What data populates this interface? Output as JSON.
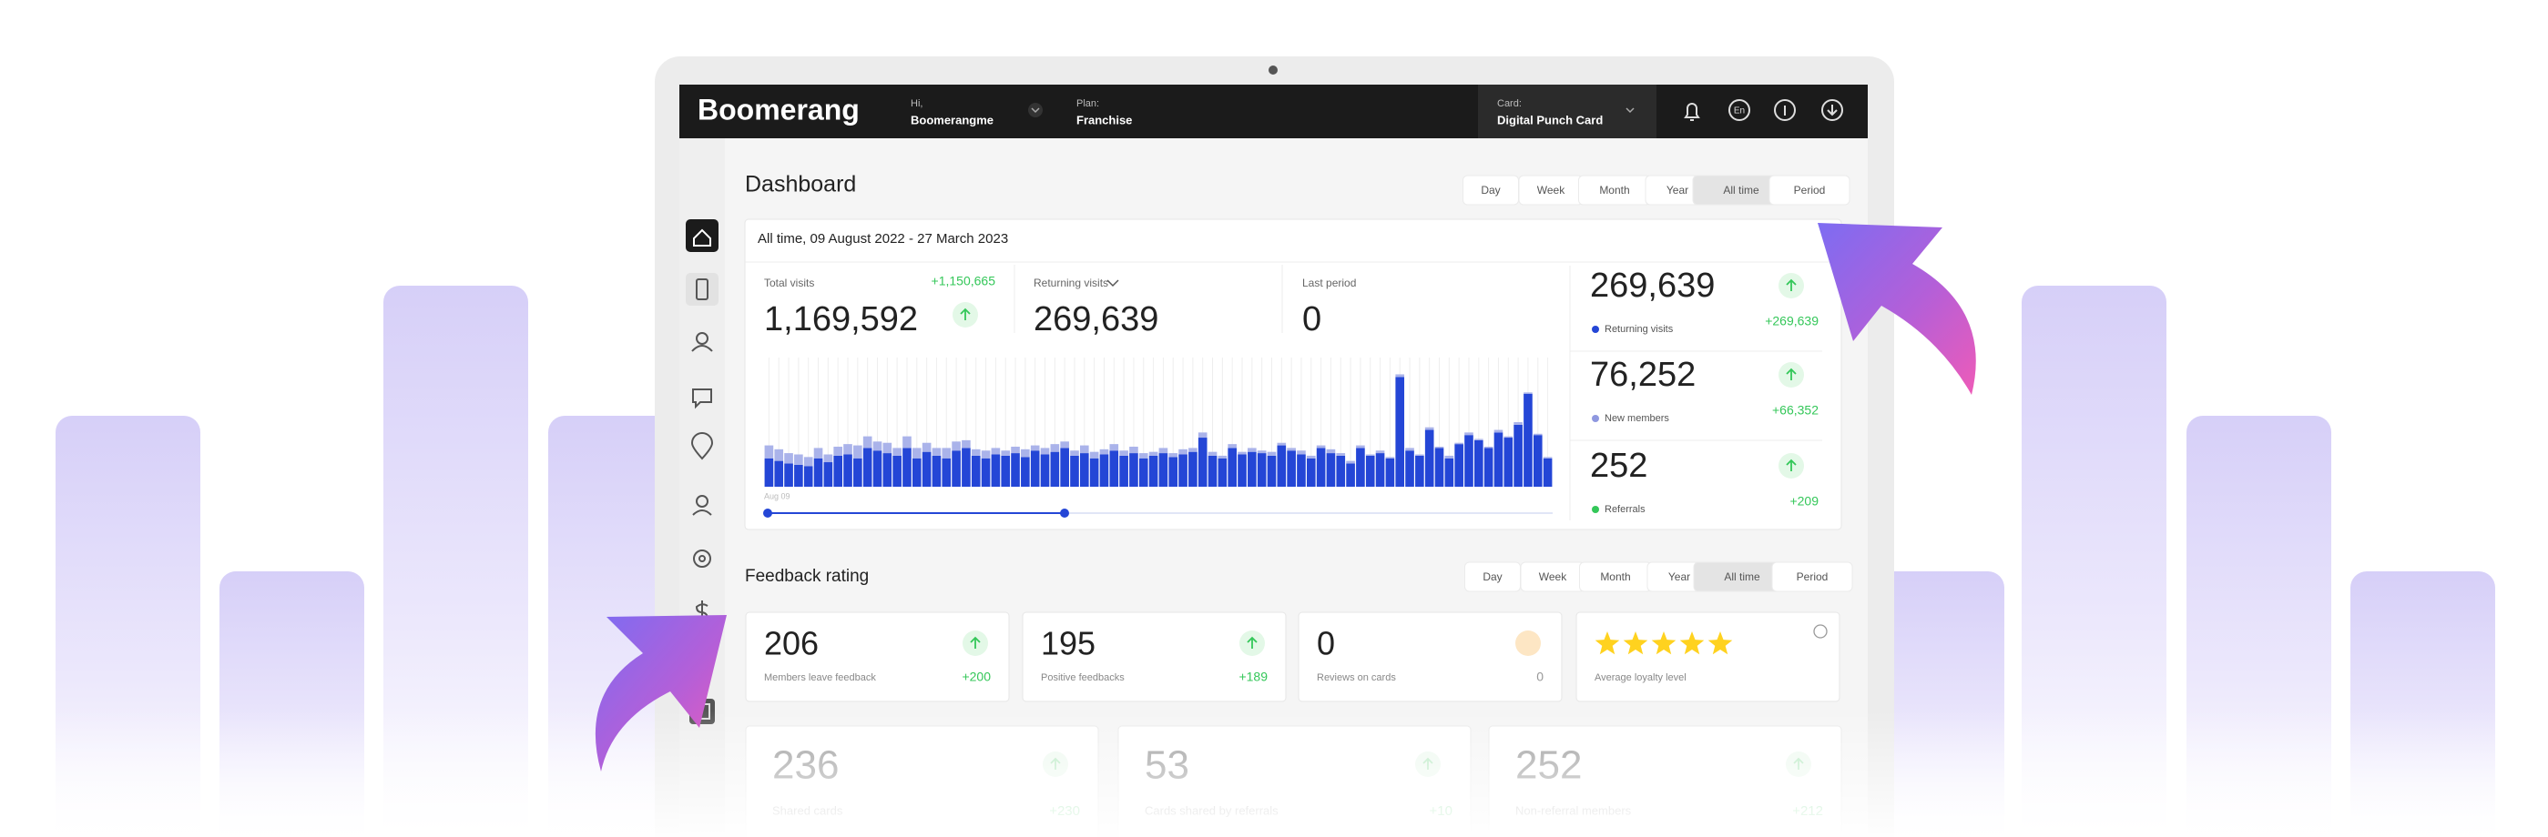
{
  "nav": {
    "logo": "Boomerang",
    "greeting": "Hi,",
    "user": "Boomerangme",
    "plan_label": "Plan:",
    "plan": "Franchise",
    "card_label": "Card:",
    "card": "Digital Punch Card",
    "language": "En"
  },
  "dashboard": {
    "title": "Dashboard",
    "periods": [
      "Day",
      "Week",
      "Month",
      "Year",
      "All time",
      "Period"
    ],
    "active_period": 4,
    "range": "All time, 09 August 2022 - 27 March 2023",
    "stats": [
      {
        "label": "Total visits",
        "value": "1,169,592",
        "delta": "+1,150,665"
      },
      {
        "label": "Returning visits",
        "value": "269,639"
      },
      {
        "label": "Last period",
        "value": "0"
      }
    ],
    "chart": {
      "type": "bar",
      "start_label": "Aug 09",
      "series": [
        {
          "color": "#2446d6",
          "values": [
            22,
            20,
            18,
            17,
            16,
            22,
            19,
            24,
            25,
            22,
            30,
            28,
            26,
            24,
            30,
            22,
            27,
            24,
            22,
            28,
            30,
            24,
            22,
            25,
            24,
            26,
            23,
            28,
            25,
            27,
            30,
            24,
            26,
            22,
            25,
            28,
            24,
            26,
            22,
            24,
            26,
            23,
            25,
            27,
            38,
            24,
            22,
            30,
            25,
            27,
            26,
            24,
            32,
            28,
            25,
            22,
            30,
            26,
            24,
            18,
            30,
            24,
            26,
            22,
            85,
            28,
            24,
            44,
            30,
            22,
            33,
            40,
            36,
            30,
            42,
            38,
            48,
            72,
            40,
            22
          ]
        },
        {
          "color": "#aab3ea",
          "values": [
            10,
            9,
            8,
            8,
            7,
            8,
            6,
            7,
            8,
            10,
            9,
            7,
            8,
            6,
            9,
            8,
            7,
            6,
            8,
            7,
            6,
            5,
            6,
            5,
            4,
            5,
            6,
            4,
            5,
            6,
            5,
            4,
            6,
            5,
            4,
            5,
            4,
            5,
            4,
            3,
            4,
            3,
            4,
            3,
            4,
            3,
            2,
            3,
            2,
            3,
            2,
            3,
            2,
            2,
            3,
            2,
            2,
            3,
            2,
            2,
            2,
            1,
            2,
            1,
            2,
            2,
            1,
            2,
            1,
            2,
            1,
            2,
            1,
            1,
            2,
            1,
            2,
            1,
            1,
            1
          ]
        }
      ]
    },
    "side": [
      {
        "value": "269,639",
        "label": "Returning visits",
        "delta": "+269,639",
        "color": "#2446d6"
      },
      {
        "value": "76,252",
        "label": "New members",
        "delta": "+66,352",
        "color": "#8f98e0"
      },
      {
        "value": "252",
        "label": "Referrals",
        "delta": "+209",
        "color": "#34c759"
      }
    ]
  },
  "feedback": {
    "title": "Feedback rating",
    "periods": [
      "Day",
      "Week",
      "Month",
      "Year",
      "All time",
      "Period"
    ],
    "active_period": 4,
    "cards": [
      {
        "value": "206",
        "label": "Members leave feedback",
        "delta": "+200"
      },
      {
        "value": "195",
        "label": "Positive feedbacks",
        "delta": "+189"
      },
      {
        "value": "0",
        "label": "Reviews on cards",
        "delta": "0"
      },
      {
        "stars": 5,
        "label": "Average loyalty level"
      }
    ],
    "more": [
      {
        "value": "236",
        "label": "Shared cards",
        "delta": "+230"
      },
      {
        "value": "53",
        "label": "Cards shared by referrals",
        "delta": "+10"
      },
      {
        "value": "252",
        "label": "Non-referral members",
        "delta": "+212"
      }
    ]
  }
}
